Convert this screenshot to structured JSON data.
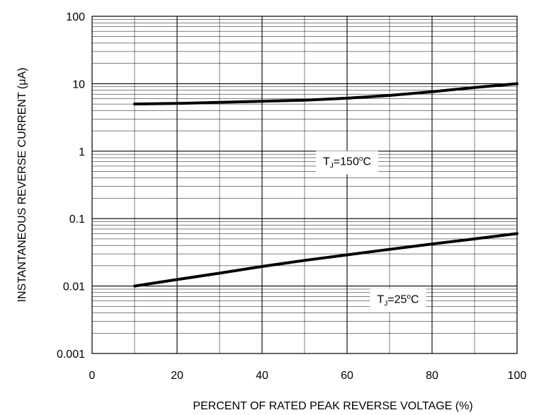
{
  "chart_data": {
    "type": "line",
    "xlabel": "PERCENT OF RATED PEAK REVERSE VOLTAGE (%)",
    "ylabel": "INSTANTANEOUS  REVERSE CURRENT (μA)",
    "xlim": [
      0,
      100
    ],
    "ylim": [
      0.001,
      100
    ],
    "yscale": "log",
    "grid": true,
    "x_ticks": [
      0,
      20,
      40,
      60,
      80,
      100
    ],
    "x_tick_labels": [
      "0",
      "20",
      "40",
      "60",
      "80",
      "100"
    ],
    "y_ticks": [
      100,
      10,
      1,
      0.1,
      0.01,
      0.001
    ],
    "y_tick_labels": [
      "100",
      "10",
      "1",
      "0.1",
      "0.01",
      "0.001"
    ],
    "series": [
      {
        "name": "TJ=150°C",
        "x": [
          10,
          20,
          30,
          40,
          50,
          60,
          70,
          80,
          90,
          100
        ],
        "y": [
          5.0,
          5.1,
          5.3,
          5.5,
          5.7,
          6.1,
          6.7,
          7.6,
          8.8,
          10.0
        ]
      },
      {
        "name": "TJ=25°C",
        "x": [
          10,
          20,
          30,
          40,
          50,
          60,
          70,
          80,
          90,
          100
        ],
        "y": [
          0.01,
          0.0125,
          0.0155,
          0.0195,
          0.024,
          0.029,
          0.035,
          0.042,
          0.05,
          0.06
        ]
      }
    ],
    "annotations": [
      {
        "series": 0,
        "text_main": "T",
        "text_sub": "J",
        "text_rest": "=150",
        "text_sup": "o",
        "text_end": "C"
      },
      {
        "series": 1,
        "text_main": "T",
        "text_sub": "J",
        "text_rest": "=25",
        "text_sup": "o",
        "text_end": "C"
      }
    ],
    "colors": {
      "line": "#000000",
      "grid": "#000000",
      "background": "#ffffff"
    }
  }
}
